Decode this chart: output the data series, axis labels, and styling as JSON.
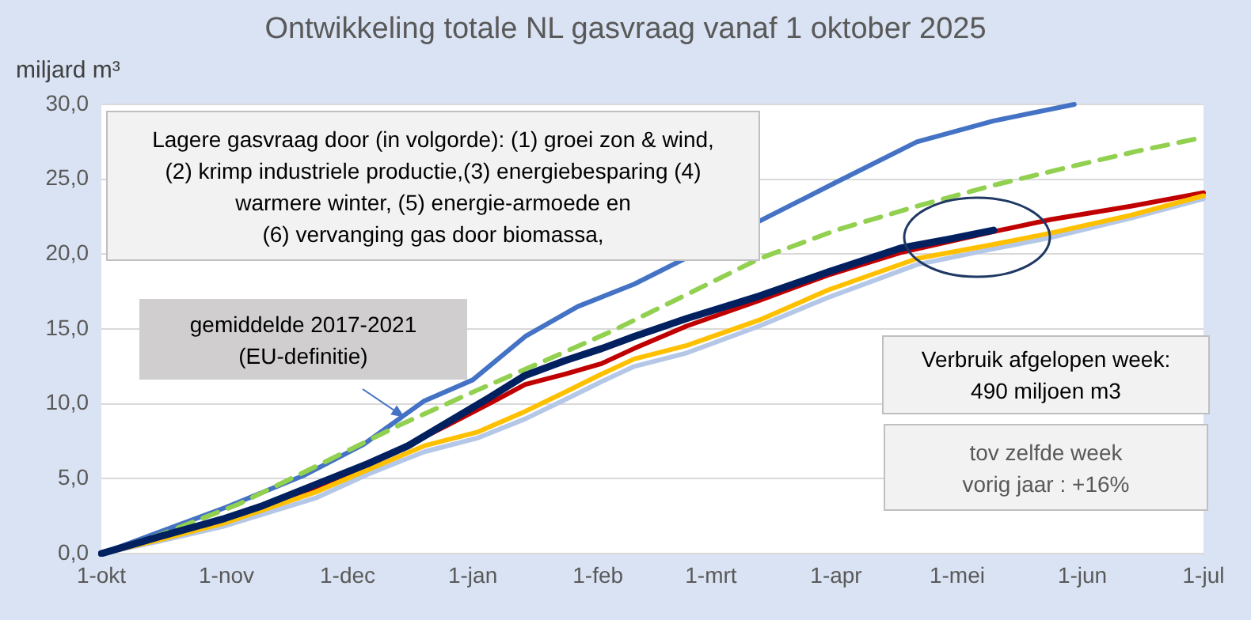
{
  "chart_data": {
    "type": "line",
    "title": "Ontwikkeling totale NL gasvraag vanaf 1 oktober 2025",
    "ylabel": "miljard m³",
    "xlim": [
      "2025-10-01",
      "2026-07-01"
    ],
    "xticks": [
      {
        "value": "2025-10-01",
        "label": "1-okt"
      },
      {
        "value": "2025-11-01",
        "label": "1-nov"
      },
      {
        "value": "2025-12-01",
        "label": "1-dec"
      },
      {
        "value": "2026-01-01",
        "label": "1-jan"
      },
      {
        "value": "2026-02-01",
        "label": "1-feb"
      },
      {
        "value": "2026-03-01",
        "label": "1-mrt"
      },
      {
        "value": "2026-04-01",
        "label": "1-apr"
      },
      {
        "value": "2026-05-01",
        "label": "1-mei"
      },
      {
        "value": "2026-06-01",
        "label": "1-jun"
      },
      {
        "value": "2026-07-01",
        "label": "1-jul"
      }
    ],
    "ylim": [
      0,
      30
    ],
    "yticks": [
      {
        "value": 0,
        "label": "0,0"
      },
      {
        "value": 5,
        "label": "5,0"
      },
      {
        "value": 10,
        "label": "10,0"
      },
      {
        "value": 15,
        "label": "15,0"
      },
      {
        "value": 20,
        "label": "20,0"
      },
      {
        "value": 25,
        "label": "25,0"
      },
      {
        "value": 30,
        "label": "30,0"
      }
    ],
    "grid": "y",
    "legend": false,
    "marker": "none",
    "series": [
      {
        "color": "#4472c4",
        "x": [
          "2025-10-01",
          "2025-10-16",
          "2025-11-01",
          "2025-11-20",
          "2025-12-05",
          "2025-12-20",
          "2026-01-01",
          "2026-01-14",
          "2026-01-27",
          "2026-02-10",
          "2026-03-13",
          "2026-04-01",
          "2026-04-21",
          "2026-05-10",
          "2026-05-30"
        ],
        "values": [
          0,
          1.5,
          3.1,
          5.2,
          7.3,
          10.2,
          11.6,
          14.5,
          16.5,
          18.0,
          22.2,
          24.8,
          27.5,
          28.9,
          30.0
        ]
      },
      {
        "color": "#92d050",
        "line_style": "dashed",
        "x": [
          "2025-10-01",
          "2025-10-16",
          "2025-11-04",
          "2025-11-23",
          "2025-12-14",
          "2026-01-02",
          "2026-01-19",
          "2026-02-04",
          "2026-02-23",
          "2026-03-13",
          "2026-04-01",
          "2026-04-21",
          "2026-05-10",
          "2026-05-30",
          "2026-06-15",
          "2026-07-01"
        ],
        "values": [
          0,
          1.3,
          3.3,
          5.8,
          8.6,
          10.9,
          12.9,
          14.8,
          17.3,
          19.7,
          21.6,
          23.2,
          24.6,
          25.9,
          26.9,
          27.8
        ]
      },
      {
        "color": "#c00000",
        "x": [
          "2025-10-31",
          "2025-11-23",
          "2025-12-06",
          "2025-12-26",
          "2026-01-05",
          "2026-01-14",
          "2026-01-24",
          "2026-02-02",
          "2026-02-10",
          "2026-02-23",
          "2026-03-13",
          "2026-03-30",
          "2026-04-17",
          "2026-05-10",
          "2026-05-24",
          "2026-06-13",
          "2026-07-01"
        ],
        "values": [
          2.2,
          4.4,
          5.9,
          8.6,
          10.0,
          11.3,
          12.0,
          12.7,
          13.7,
          15.2,
          16.9,
          18.6,
          20.1,
          21.5,
          22.3,
          23.2,
          24.1
        ]
      },
      {
        "color": "#b4c7e7",
        "x": [
          "2025-10-01",
          "2025-10-15",
          "2025-10-31",
          "2025-11-23",
          "2025-12-06",
          "2025-12-20",
          "2026-01-02",
          "2026-01-14",
          "2026-01-24",
          "2026-02-02",
          "2026-02-10",
          "2026-02-23",
          "2026-03-13",
          "2026-03-30",
          "2026-04-21",
          "2026-05-09",
          "2026-05-24",
          "2026-06-13",
          "2026-07-01"
        ],
        "values": [
          0,
          0.8,
          1.8,
          3.7,
          5.3,
          6.8,
          7.7,
          9.0,
          10.3,
          11.5,
          12.5,
          13.4,
          15.2,
          17.1,
          19.3,
          20.3,
          21.1,
          22.4,
          23.7
        ]
      },
      {
        "color": "#ffc000",
        "x": [
          "2025-10-01",
          "2025-10-15",
          "2025-10-31",
          "2025-11-23",
          "2025-12-06",
          "2025-12-20",
          "2026-01-02",
          "2026-01-14",
          "2026-01-24",
          "2026-02-02",
          "2026-02-10",
          "2026-02-23",
          "2026-03-13",
          "2026-03-30",
          "2026-04-21",
          "2026-05-09",
          "2026-05-24",
          "2026-06-13",
          "2026-07-01"
        ],
        "values": [
          0,
          0.9,
          2.0,
          4.1,
          5.6,
          7.2,
          8.1,
          9.5,
          10.8,
          12.0,
          13.0,
          13.9,
          15.6,
          17.6,
          19.7,
          20.6,
          21.4,
          22.6,
          23.9
        ]
      },
      {
        "color": "#002060",
        "x": [
          "2025-10-01",
          "2025-10-15",
          "2025-10-31",
          "2025-11-10",
          "2025-11-23",
          "2025-12-06",
          "2025-12-16",
          "2025-12-26",
          "2026-01-05",
          "2026-01-14",
          "2026-01-24",
          "2026-02-02",
          "2026-02-10",
          "2026-02-23",
          "2026-03-13",
          "2026-03-30",
          "2026-04-17",
          "2026-04-29",
          "2026-05-10"
        ],
        "values": [
          0,
          1.1,
          2.3,
          3.2,
          4.6,
          6.0,
          7.2,
          8.8,
          10.4,
          11.9,
          12.9,
          13.7,
          14.5,
          15.7,
          17.2,
          18.8,
          20.4,
          21.0,
          21.6
        ]
      }
    ],
    "annotations": [
      "Lagere gasvraag door (in volgorde): (1) groei zon & wind,\n(2) krimp industriele productie,(3) energiebesparing (4)\nwarmere winter, (5) energie-armoede en\n(6) vervanging gas door biomassa,",
      {
        "text": "gemiddelde 2017-2021\n(EU-definitie)",
        "x": "2025-12-15",
        "y": 9.1
      },
      "Verbruik afgelopen week:\n490 miljoen m3",
      "tov zelfde week\nvorig jaar : +16%"
    ]
  }
}
